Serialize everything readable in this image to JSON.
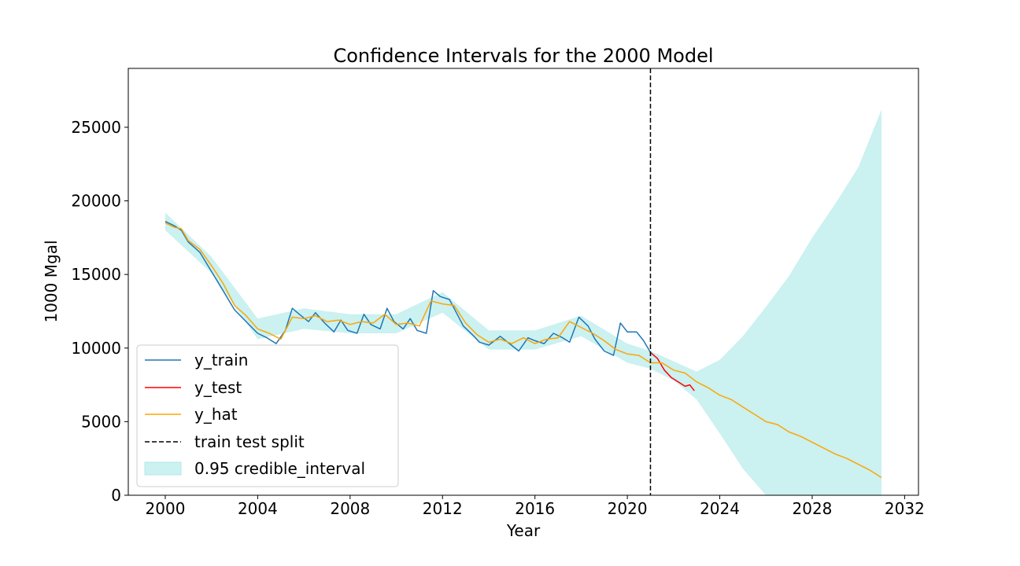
{
  "chart_data": {
    "type": "line",
    "title": "Confidence Intervals for the 2000 Model",
    "xlabel": "Year",
    "ylabel": "1000 Mgal",
    "xlim": [
      1998.4,
      2032.6
    ],
    "ylim": [
      0,
      29000
    ],
    "xticks": [
      2000,
      2004,
      2008,
      2012,
      2016,
      2020,
      2024,
      2028,
      2032
    ],
    "yticks": [
      0,
      5000,
      10000,
      15000,
      20000,
      25000
    ],
    "grid": false,
    "legend_placement": "lower-left",
    "split_x": 2021.0,
    "series": [
      {
        "name": "y_train",
        "color": "#1f77b4",
        "x": [
          2000.0,
          2000.4,
          2000.7,
          2001.0,
          2001.5,
          2002.0,
          2002.5,
          2003.0,
          2003.5,
          2004.0,
          2004.4,
          2004.8,
          2005.2,
          2005.5,
          2005.8,
          2006.2,
          2006.5,
          2006.9,
          2007.3,
          2007.6,
          2007.9,
          2008.3,
          2008.6,
          2008.9,
          2009.3,
          2009.6,
          2009.9,
          2010.3,
          2010.6,
          2010.9,
          2011.3,
          2011.6,
          2011.9,
          2012.3,
          2012.6,
          2012.9,
          2013.3,
          2013.6,
          2014.0,
          2014.5,
          2014.9,
          2015.3,
          2015.7,
          2016.0,
          2016.4,
          2016.8,
          2017.2,
          2017.5,
          2017.9,
          2018.3,
          2018.6,
          2019.0,
          2019.4,
          2019.7,
          2020.0,
          2020.4,
          2020.7,
          2021.0
        ],
        "values": [
          18600,
          18300,
          18000,
          17200,
          16500,
          15200,
          13900,
          12600,
          11800,
          11000,
          10700,
          10300,
          11200,
          12700,
          12300,
          11800,
          12400,
          11700,
          11100,
          11900,
          11200,
          11000,
          12300,
          11600,
          11300,
          12700,
          11800,
          11300,
          12000,
          11200,
          11000,
          13900,
          13500,
          13300,
          12400,
          11500,
          10900,
          10400,
          10200,
          10800,
          10300,
          9800,
          10700,
          10500,
          10300,
          11000,
          10700,
          10400,
          12100,
          11500,
          10600,
          9800,
          9500,
          11700,
          11100,
          11100,
          10500,
          9700
        ]
      },
      {
        "name": "y_test",
        "color": "#ff0000",
        "x": [
          2021.0,
          2021.3,
          2021.6,
          2021.9,
          2022.2,
          2022.5,
          2022.7,
          2022.9
        ],
        "values": [
          9700,
          9300,
          8500,
          8000,
          7700,
          7400,
          7500,
          7100
        ]
      },
      {
        "name": "y_hat",
        "color": "#ffa500",
        "x": [
          2000.0,
          2000.4,
          2000.7,
          2001.0,
          2001.5,
          2002.0,
          2002.5,
          2003.0,
          2003.5,
          2004.0,
          2004.5,
          2005.0,
          2005.5,
          2006.0,
          2006.5,
          2007.0,
          2007.5,
          2008.0,
          2008.5,
          2009.0,
          2009.5,
          2010.0,
          2010.5,
          2011.0,
          2011.5,
          2012.0,
          2012.5,
          2013.0,
          2013.5,
          2014.0,
          2014.5,
          2015.0,
          2015.5,
          2016.0,
          2016.5,
          2017.0,
          2017.5,
          2018.0,
          2018.5,
          2019.0,
          2019.5,
          2020.0,
          2020.5,
          2021.0,
          2021.5,
          2022.0,
          2022.5,
          2023.0,
          2023.5,
          2024.0,
          2024.5,
          2025.0,
          2025.5,
          2026.0,
          2026.5,
          2027.0,
          2027.5,
          2028.0,
          2028.5,
          2029.0,
          2029.5,
          2030.0,
          2030.5,
          2031.0
        ],
        "values": [
          18500,
          18200,
          18100,
          17300,
          16700,
          15600,
          14400,
          12900,
          12200,
          11300,
          11000,
          10600,
          12100,
          12000,
          12200,
          11800,
          11900,
          11600,
          11800,
          11700,
          12300,
          11600,
          11700,
          11500,
          13200,
          13000,
          12900,
          11700,
          10900,
          10400,
          10600,
          10300,
          10700,
          10300,
          10600,
          10700,
          11800,
          11400,
          11000,
          10500,
          9900,
          9600,
          9500,
          9000,
          9000,
          8500,
          8300,
          7700,
          7300,
          6800,
          6500,
          6000,
          5500,
          5000,
          4800,
          4300,
          4000,
          3600,
          3200,
          2800,
          2500,
          2100,
          1700,
          1200
        ]
      }
    ],
    "interval": {
      "name": "0.95 credible_interval",
      "color": "#cbf1f1",
      "x": [
        2000.0,
        2002.0,
        2004.0,
        2006.0,
        2008.0,
        2010.0,
        2012.0,
        2014.0,
        2016.0,
        2018.0,
        2020.0,
        2021.0,
        2022.0,
        2023.0,
        2024.0,
        2025.0,
        2026.0,
        2027.0,
        2028.0,
        2029.0,
        2030.0,
        2031.0
      ],
      "lower": [
        18000,
        15100,
        10600,
        11300,
        11000,
        11000,
        12400,
        9900,
        9900,
        10800,
        9000,
        8600,
        7800,
        6500,
        4200,
        1800,
        0,
        0,
        0,
        0,
        0,
        0
      ],
      "upper": [
        19200,
        16200,
        12000,
        12700,
        12300,
        12300,
        13800,
        11200,
        11200,
        12200,
        10300,
        9800,
        9100,
        8400,
        9200,
        10800,
        12800,
        14900,
        17500,
        19800,
        22300,
        26200
      ]
    },
    "legend": [
      {
        "label": "y_train",
        "kind": "line",
        "color": "#1f77b4"
      },
      {
        "label": "y_test",
        "kind": "line",
        "color": "#ff0000"
      },
      {
        "label": "y_hat",
        "kind": "line",
        "color": "#ffa500"
      },
      {
        "label": "train test split",
        "kind": "dashed",
        "color": "#000000"
      },
      {
        "label": "0.95 credible_interval",
        "kind": "patch",
        "color": "#cbf1f1"
      }
    ]
  }
}
